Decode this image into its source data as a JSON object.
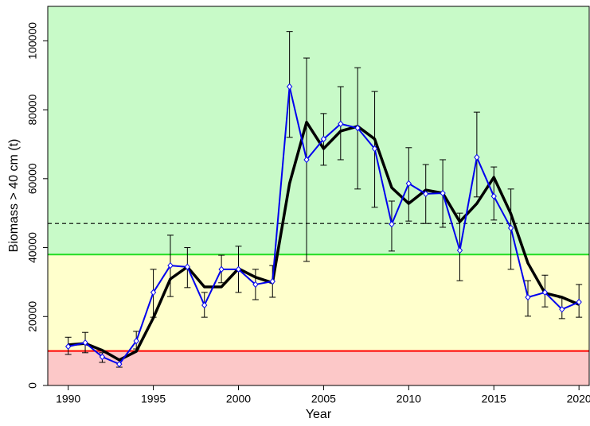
{
  "chart_data": {
    "type": "line",
    "x_label": "Year",
    "y_label": "Biomass > 40 cm (t)",
    "xlim": [
      1988.8,
      2020.6
    ],
    "ylim": [
      0,
      110000
    ],
    "xticks": [
      1990,
      1995,
      2000,
      2005,
      2010,
      2015,
      2020
    ],
    "yticks": [
      0,
      20000,
      40000,
      60000,
      80000,
      100000
    ],
    "zone_colors": [
      "#fcc8c8",
      "#ffffcc",
      "#c8fac8"
    ],
    "hlines": [
      {
        "value": 10000,
        "color": "#ff0000",
        "dash": false
      },
      {
        "value": 38000,
        "color": "#22dd22",
        "dash": false
      },
      {
        "value": 47000,
        "color": "#000000",
        "dash": true
      }
    ],
    "x": [
      1990,
      1991,
      1992,
      1993,
      1994,
      1995,
      1996,
      1997,
      1998,
      1999,
      2000,
      2001,
      2002,
      2003,
      2004,
      2005,
      2006,
      2007,
      2008,
      2009,
      2010,
      2011,
      2012,
      2013,
      2014,
      2015,
      2016,
      2017,
      2018,
      2019,
      2020
    ],
    "series": [
      {
        "color": "#0000ee",
        "markers": true,
        "values": [
          11300,
          12400,
          8300,
          6200,
          12900,
          27000,
          34800,
          34400,
          23300,
          33700,
          33700,
          29300,
          30200,
          86700,
          65500,
          71500,
          75900,
          74700,
          68700,
          46800,
          58600,
          55600,
          55800,
          39200,
          66200,
          54900,
          45700,
          25600,
          27000,
          22100,
          24200
        ],
        "lower": [
          9000,
          9500,
          6700,
          5300,
          10600,
          19800,
          25800,
          28400,
          19800,
          29800,
          27000,
          24900,
          25600,
          72000,
          36000,
          63900,
          65500,
          57000,
          51700,
          39000,
          47700,
          47000,
          45900,
          30400,
          54700,
          48000,
          33700,
          20100,
          22800,
          19400,
          19800
        ],
        "upper": [
          14000,
          15400,
          9500,
          7600,
          15700,
          33700,
          43600,
          40000,
          27000,
          37800,
          40400,
          33700,
          34800,
          102700,
          95000,
          78900,
          86700,
          92200,
          85300,
          53500,
          69000,
          64100,
          65500,
          50000,
          79300,
          63400,
          57000,
          30400,
          32000,
          25400,
          29300
        ]
      },
      {
        "color": "#000000",
        "markers": false,
        "values": [
          11800,
          12200,
          10200,
          7400,
          9900,
          19600,
          30900,
          34400,
          28600,
          28600,
          33900,
          31400,
          29800,
          58600,
          76400,
          68700,
          73800,
          75200,
          71500,
          57400,
          52800,
          56700,
          55800,
          47500,
          52800,
          60400,
          49800,
          35500,
          26800,
          25600,
          23500
        ]
      }
    ]
  }
}
